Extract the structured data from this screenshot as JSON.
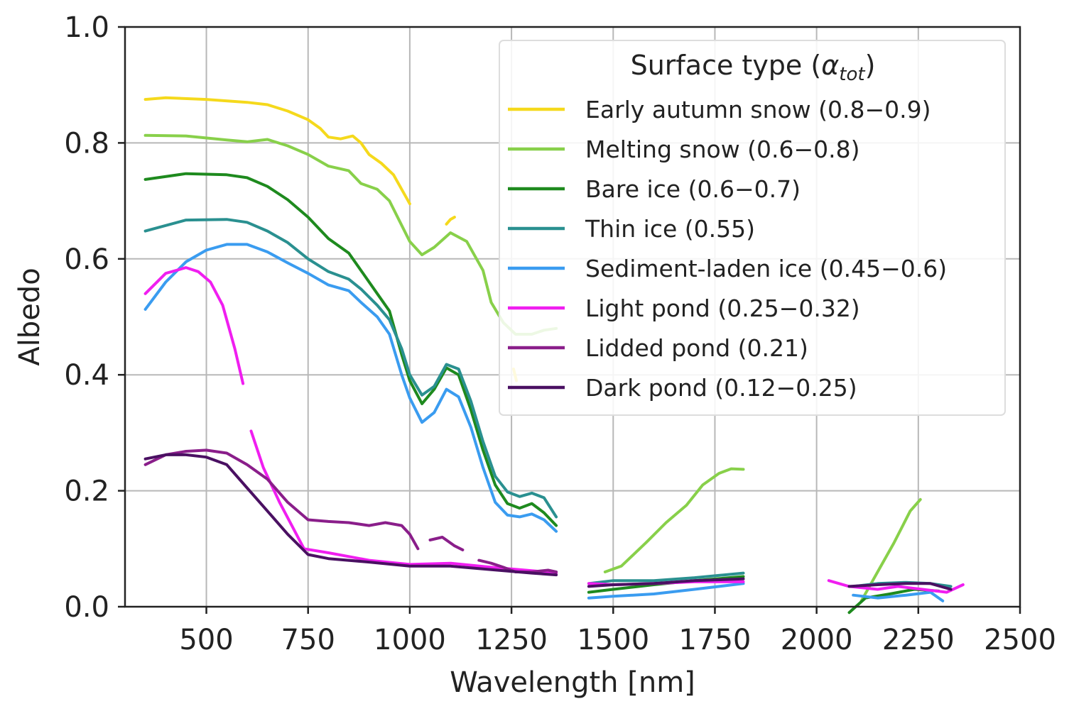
{
  "chart_data": {
    "type": "line",
    "xlabel": "Wavelength [nm]",
    "ylabel": "Albedo",
    "xlim": [
      300,
      2500
    ],
    "ylim": [
      0.0,
      1.0
    ],
    "x_ticks": [
      "500",
      "750",
      "1000",
      "1250",
      "1500",
      "1750",
      "2000",
      "2250",
      "2500"
    ],
    "y_ticks": [
      "0.0",
      "0.2",
      "0.4",
      "0.6",
      "0.8",
      "1.0"
    ],
    "x_tick_values": [
      500,
      750,
      1000,
      1250,
      1500,
      1750,
      2000,
      2250,
      2500
    ],
    "y_tick_values": [
      0.0,
      0.2,
      0.4,
      0.6,
      0.8,
      1.0
    ],
    "grid": true,
    "legend": {
      "placement": "top-right",
      "title_main": "Surface type (",
      "title_symbol": "α",
      "title_subscript": "tot",
      "title_close": ")"
    },
    "series": [
      {
        "name": "Early autumn snow (0.8−0.9)",
        "color": "#f5d91c",
        "segments": [
          [
            [
              350,
              0.875
            ],
            [
              400,
              0.878
            ],
            [
              500,
              0.875
            ],
            [
              600,
              0.87
            ],
            [
              650,
              0.866
            ],
            [
              700,
              0.855
            ],
            [
              750,
              0.84
            ],
            [
              780,
              0.825
            ],
            [
              800,
              0.81
            ],
            [
              830,
              0.807
            ],
            [
              860,
              0.812
            ],
            [
              880,
              0.8
            ],
            [
              900,
              0.78
            ],
            [
              930,
              0.765
            ],
            [
              960,
              0.745
            ],
            [
              980,
              0.72
            ],
            [
              1000,
              0.695
            ]
          ],
          [
            [
              1090,
              0.66
            ],
            [
              1100,
              0.668
            ],
            [
              1110,
              0.672
            ]
          ],
          [
            [
              1255,
              0.41
            ],
            [
              1262,
              0.39
            ]
          ]
        ]
      },
      {
        "name": "Melting snow (0.6−0.8)",
        "color": "#88d04a",
        "segments": [
          [
            [
              350,
              0.813
            ],
            [
              450,
              0.812
            ],
            [
              550,
              0.805
            ],
            [
              600,
              0.802
            ],
            [
              650,
              0.806
            ],
            [
              700,
              0.795
            ],
            [
              750,
              0.78
            ],
            [
              800,
              0.76
            ],
            [
              850,
              0.752
            ],
            [
              880,
              0.73
            ],
            [
              920,
              0.72
            ],
            [
              950,
              0.7
            ],
            [
              1000,
              0.63
            ],
            [
              1030,
              0.607
            ],
            [
              1060,
              0.62
            ],
            [
              1100,
              0.645
            ],
            [
              1140,
              0.63
            ],
            [
              1180,
              0.58
            ],
            [
              1200,
              0.525
            ],
            [
              1230,
              0.49
            ],
            [
              1260,
              0.47
            ],
            [
              1300,
              0.47
            ],
            [
              1330,
              0.477
            ],
            [
              1360,
              0.48
            ]
          ],
          [
            [
              1480,
              0.06
            ],
            [
              1520,
              0.07
            ],
            [
              1580,
              0.11
            ],
            [
              1630,
              0.145
            ],
            [
              1680,
              0.175
            ],
            [
              1720,
              0.21
            ],
            [
              1760,
              0.23
            ],
            [
              1790,
              0.238
            ],
            [
              1820,
              0.237
            ]
          ],
          [
            [
              2110,
              0.01
            ],
            [
              2150,
              0.06
            ],
            [
              2190,
              0.11
            ],
            [
              2230,
              0.165
            ],
            [
              2255,
              0.185
            ]
          ]
        ]
      },
      {
        "name": "Bare ice (0.6−0.7)",
        "color": "#1e8a1e",
        "segments": [
          [
            [
              350,
              0.737
            ],
            [
              450,
              0.747
            ],
            [
              550,
              0.745
            ],
            [
              600,
              0.74
            ],
            [
              650,
              0.725
            ],
            [
              700,
              0.702
            ],
            [
              750,
              0.672
            ],
            [
              800,
              0.635
            ],
            [
              850,
              0.61
            ],
            [
              880,
              0.58
            ],
            [
              920,
              0.54
            ],
            [
              950,
              0.51
            ],
            [
              980,
              0.435
            ],
            [
              1000,
              0.39
            ],
            [
              1030,
              0.35
            ],
            [
              1060,
              0.375
            ],
            [
              1090,
              0.412
            ],
            [
              1120,
              0.4
            ],
            [
              1150,
              0.34
            ],
            [
              1180,
              0.27
            ],
            [
              1210,
              0.21
            ],
            [
              1240,
              0.178
            ],
            [
              1270,
              0.17
            ],
            [
              1300,
              0.178
            ],
            [
              1330,
              0.162
            ],
            [
              1360,
              0.14
            ]
          ],
          [
            [
              1440,
              0.025
            ],
            [
              1500,
              0.03
            ],
            [
              1600,
              0.038
            ],
            [
              1700,
              0.045
            ],
            [
              1820,
              0.052
            ]
          ],
          [
            [
              2080,
              -0.01
            ],
            [
              2120,
              0.015
            ],
            [
              2180,
              0.022
            ],
            [
              2240,
              0.03
            ],
            [
              2300,
              0.027
            ]
          ]
        ]
      },
      {
        "name": "Thin ice (0.55)",
        "color": "#2a9090",
        "segments": [
          [
            [
              350,
              0.648
            ],
            [
              450,
              0.667
            ],
            [
              550,
              0.668
            ],
            [
              600,
              0.663
            ],
            [
              650,
              0.648
            ],
            [
              700,
              0.628
            ],
            [
              750,
              0.6
            ],
            [
              800,
              0.578
            ],
            [
              850,
              0.565
            ],
            [
              880,
              0.548
            ],
            [
              920,
              0.52
            ],
            [
              950,
              0.495
            ],
            [
              980,
              0.445
            ],
            [
              1000,
              0.4
            ],
            [
              1030,
              0.365
            ],
            [
              1060,
              0.38
            ],
            [
              1090,
              0.418
            ],
            [
              1120,
              0.41
            ],
            [
              1150,
              0.355
            ],
            [
              1180,
              0.285
            ],
            [
              1210,
              0.225
            ],
            [
              1240,
              0.198
            ],
            [
              1270,
              0.19
            ],
            [
              1300,
              0.196
            ],
            [
              1330,
              0.188
            ],
            [
              1360,
              0.155
            ]
          ],
          [
            [
              1440,
              0.04
            ],
            [
              1500,
              0.045
            ],
            [
              1600,
              0.045
            ],
            [
              1700,
              0.05
            ],
            [
              1820,
              0.058
            ]
          ],
          [
            [
              2090,
              0.035
            ],
            [
              2150,
              0.04
            ],
            [
              2220,
              0.042
            ],
            [
              2280,
              0.04
            ],
            [
              2330,
              0.035
            ]
          ]
        ]
      },
      {
        "name": "Sediment-laden ice (0.45−0.6)",
        "color": "#3a9cf0",
        "segments": [
          [
            [
              350,
              0.513
            ],
            [
              400,
              0.56
            ],
            [
              450,
              0.595
            ],
            [
              500,
              0.615
            ],
            [
              550,
              0.625
            ],
            [
              600,
              0.625
            ],
            [
              650,
              0.612
            ],
            [
              700,
              0.593
            ],
            [
              750,
              0.575
            ],
            [
              800,
              0.555
            ],
            [
              850,
              0.545
            ],
            [
              880,
              0.525
            ],
            [
              920,
              0.5
            ],
            [
              950,
              0.47
            ],
            [
              980,
              0.4
            ],
            [
              1000,
              0.36
            ],
            [
              1030,
              0.318
            ],
            [
              1060,
              0.335
            ],
            [
              1090,
              0.375
            ],
            [
              1120,
              0.362
            ],
            [
              1150,
              0.31
            ],
            [
              1180,
              0.24
            ],
            [
              1210,
              0.18
            ],
            [
              1240,
              0.158
            ],
            [
              1270,
              0.155
            ],
            [
              1300,
              0.16
            ],
            [
              1330,
              0.15
            ],
            [
              1360,
              0.13
            ]
          ],
          [
            [
              1440,
              0.015
            ],
            [
              1500,
              0.018
            ],
            [
              1600,
              0.022
            ],
            [
              1700,
              0.03
            ],
            [
              1820,
              0.04
            ]
          ],
          [
            [
              2090,
              0.02
            ],
            [
              2150,
              0.015
            ],
            [
              2220,
              0.02
            ],
            [
              2280,
              0.025
            ],
            [
              2310,
              0.01
            ]
          ]
        ]
      },
      {
        "name": "Light pond (0.25−0.32)",
        "color": "#f01ef0",
        "segments": [
          [
            [
              350,
              0.54
            ],
            [
              400,
              0.575
            ],
            [
              450,
              0.585
            ],
            [
              480,
              0.578
            ],
            [
              510,
              0.56
            ],
            [
              540,
              0.52
            ],
            [
              570,
              0.445
            ],
            [
              590,
              0.385
            ]
          ],
          [
            [
              610,
              0.303
            ],
            [
              640,
              0.24
            ],
            [
              680,
              0.18
            ],
            [
              710,
              0.14
            ],
            [
              740,
              0.1
            ],
            [
              800,
              0.093
            ],
            [
              900,
              0.08
            ],
            [
              1000,
              0.073
            ],
            [
              1100,
              0.075
            ],
            [
              1200,
              0.068
            ],
            [
              1300,
              0.062
            ],
            [
              1360,
              0.058
            ]
          ],
          [
            [
              1440,
              0.04
            ],
            [
              1500,
              0.038
            ],
            [
              1600,
              0.04
            ],
            [
              1700,
              0.043
            ],
            [
              1820,
              0.043
            ]
          ],
          [
            [
              2030,
              0.045
            ],
            [
              2080,
              0.035
            ],
            [
              2150,
              0.03
            ],
            [
              2200,
              0.035
            ],
            [
              2260,
              0.03
            ],
            [
              2320,
              0.025
            ],
            [
              2360,
              0.038
            ]
          ]
        ]
      },
      {
        "name": "Lidded pond (0.21)",
        "color": "#8a1e8a",
        "segments": [
          [
            [
              350,
              0.245
            ],
            [
              400,
              0.262
            ],
            [
              450,
              0.268
            ],
            [
              500,
              0.27
            ],
            [
              550,
              0.265
            ],
            [
              600,
              0.245
            ],
            [
              650,
              0.22
            ],
            [
              700,
              0.18
            ],
            [
              750,
              0.15
            ],
            [
              800,
              0.147
            ],
            [
              850,
              0.145
            ],
            [
              900,
              0.14
            ],
            [
              940,
              0.145
            ],
            [
              980,
              0.14
            ],
            [
              1000,
              0.125
            ],
            [
              1020,
              0.1
            ]
          ],
          [
            [
              1050,
              0.115
            ],
            [
              1080,
              0.12
            ],
            [
              1110,
              0.105
            ],
            [
              1130,
              0.098
            ]
          ],
          [
            [
              1170,
              0.08
            ],
            [
              1200,
              0.075
            ],
            [
              1230,
              0.068
            ],
            [
              1260,
              0.06
            ],
            [
              1300,
              0.06
            ],
            [
              1340,
              0.063
            ],
            [
              1360,
              0.06
            ]
          ]
        ]
      },
      {
        "name": "Dark pond (0.12−0.25)",
        "color": "#4a1062",
        "segments": [
          [
            [
              350,
              0.255
            ],
            [
              400,
              0.262
            ],
            [
              450,
              0.262
            ],
            [
              500,
              0.258
            ],
            [
              550,
              0.245
            ],
            [
              600,
              0.205
            ],
            [
              650,
              0.165
            ],
            [
              700,
              0.125
            ],
            [
              750,
              0.09
            ],
            [
              800,
              0.083
            ],
            [
              900,
              0.077
            ],
            [
              1000,
              0.07
            ],
            [
              1100,
              0.07
            ],
            [
              1200,
              0.064
            ],
            [
              1300,
              0.058
            ],
            [
              1360,
              0.055
            ]
          ],
          [
            [
              1440,
              0.035
            ],
            [
              1500,
              0.038
            ],
            [
              1600,
              0.04
            ],
            [
              1700,
              0.045
            ],
            [
              1820,
              0.048
            ]
          ],
          [
            [
              2080,
              0.035
            ],
            [
              2150,
              0.038
            ],
            [
              2220,
              0.04
            ],
            [
              2280,
              0.04
            ],
            [
              2330,
              0.03
            ]
          ]
        ]
      }
    ]
  }
}
